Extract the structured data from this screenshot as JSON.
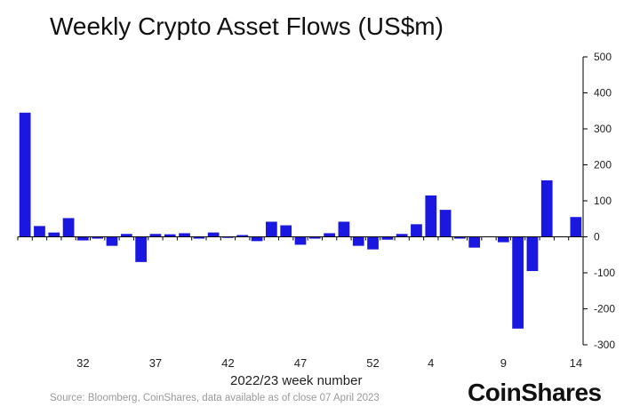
{
  "chart_data": {
    "type": "bar",
    "title": "Weekly Crypto Asset Flows (US$m)",
    "xlabel": "2022/23 week number",
    "ylabel": "",
    "ylim": [
      -300,
      500
    ],
    "y_axis_side": "right",
    "y_ticks": [
      500,
      400,
      300,
      200,
      100,
      0,
      -100,
      -200,
      -300
    ],
    "x_tick_labels": [
      "32",
      "37",
      "42",
      "47",
      "52",
      "4",
      "9",
      "14"
    ],
    "categories": [
      "28",
      "29",
      "30",
      "31",
      "32",
      "33",
      "34",
      "35",
      "36",
      "37",
      "38",
      "39",
      "40",
      "41",
      "42",
      "43",
      "44",
      "45",
      "46",
      "47",
      "48",
      "49",
      "50",
      "51",
      "52",
      "1",
      "2",
      "3",
      "4",
      "5",
      "6",
      "7",
      "8",
      "9",
      "10",
      "11",
      "12",
      "13",
      "14"
    ],
    "values": [
      345,
      30,
      12,
      52,
      -10,
      -5,
      -25,
      8,
      -70,
      8,
      7,
      10,
      -5,
      12,
      -3,
      5,
      -12,
      42,
      32,
      -22,
      -5,
      10,
      42,
      -25,
      -35,
      -8,
      8,
      35,
      115,
      75,
      -5,
      -30,
      0,
      -15,
      -255,
      -95,
      157,
      0,
      55
    ],
    "bar_color": "#1a18e0"
  },
  "source": "Source: Bloomberg, CoinShares, data available as of close 07 April 2023",
  "brand": "CoinShares"
}
